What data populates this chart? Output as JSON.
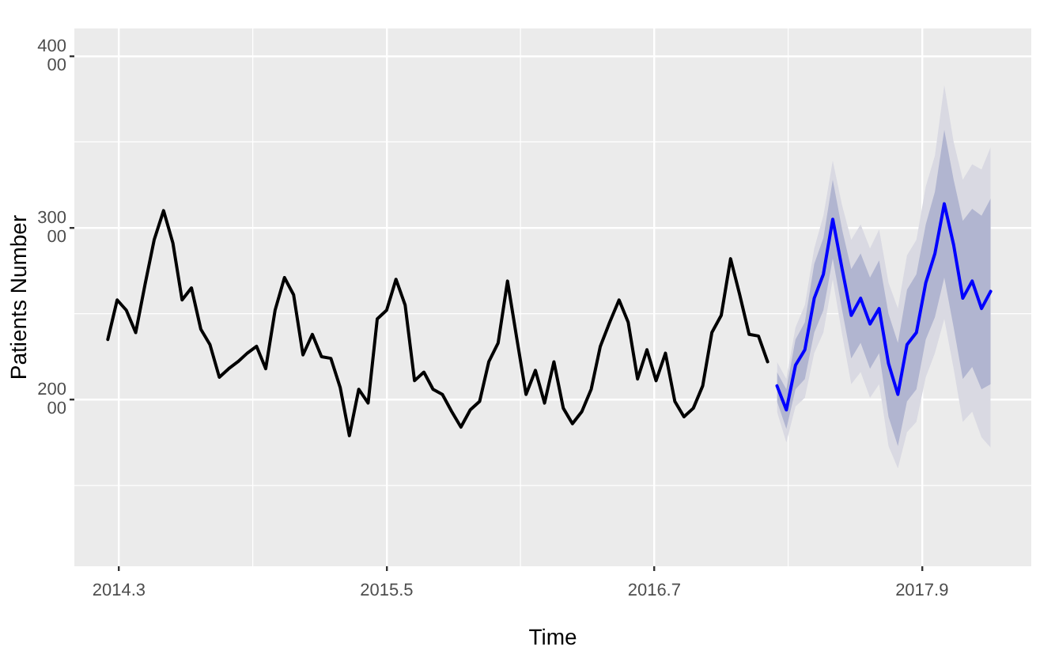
{
  "chart_data": {
    "type": "line",
    "xlabel": "Time",
    "ylabel": "Patients Number",
    "xlim": [
      2014.1,
      2018.39
    ],
    "xticks": [
      2014.3,
      2015.5,
      2016.7,
      2017.9
    ],
    "ylim": [
      10300,
      41600
    ],
    "yticks": [
      20000,
      30000,
      40000
    ],
    "grid": true,
    "legend": false,
    "marker": "none",
    "line_style": "solid",
    "series": [
      {
        "color": "#000000",
        "x": [
          2014.25,
          2014.292,
          2014.333,
          2014.375,
          2014.417,
          2014.458,
          2014.5,
          2014.542,
          2014.583,
          2014.625,
          2014.667,
          2014.708,
          2014.75,
          2014.792,
          2014.833,
          2014.875,
          2014.917,
          2014.958,
          2015.0,
          2015.042,
          2015.083,
          2015.125,
          2015.167,
          2015.208,
          2015.25,
          2015.292,
          2015.333,
          2015.375,
          2015.417,
          2015.458,
          2015.5,
          2015.542,
          2015.583,
          2015.625,
          2015.667,
          2015.708,
          2015.75,
          2015.792,
          2015.833,
          2015.875,
          2015.917,
          2015.958,
          2016.0,
          2016.042,
          2016.083,
          2016.125,
          2016.167,
          2016.208,
          2016.25,
          2016.292,
          2016.333,
          2016.375,
          2016.417,
          2016.458,
          2016.5,
          2016.542,
          2016.583,
          2016.625,
          2016.667,
          2016.708,
          2016.75,
          2016.792,
          2016.833,
          2016.875,
          2016.917,
          2016.958,
          2017.0,
          2017.042,
          2017.083,
          2017.125,
          2017.167,
          2017.208
        ],
        "values": [
          23500,
          25800,
          25200,
          23900,
          26700,
          29300,
          31000,
          29100,
          25800,
          26500,
          24100,
          23200,
          21300,
          21800,
          22200,
          22700,
          23100,
          21800,
          25200,
          27100,
          26100,
          22600,
          23800,
          22500,
          22400,
          20700,
          17900,
          20600,
          19800,
          24700,
          25200,
          27000,
          25500,
          21100,
          21600,
          20600,
          20300,
          19300,
          18400,
          19400,
          19900,
          22200,
          23300,
          26900,
          23600,
          20300,
          21700,
          19800,
          22200,
          19500,
          18600,
          19300,
          20600,
          23100,
          24500,
          25800,
          24500,
          21200,
          22900,
          21100,
          22700,
          19900,
          19000,
          19500,
          20800,
          23900,
          24900,
          28200,
          26100,
          23800,
          23700,
          22200
        ]
      },
      {
        "color": "#0000ff",
        "x": [
          2017.25,
          2017.292,
          2017.333,
          2017.375,
          2017.417,
          2017.458,
          2017.5,
          2017.542,
          2017.583,
          2017.625,
          2017.667,
          2017.708,
          2017.75,
          2017.792,
          2017.833,
          2017.875,
          2017.917,
          2017.958,
          2018.0,
          2018.042,
          2018.083,
          2018.125,
          2018.167,
          2018.208
        ],
        "values": [
          20800,
          19400,
          22000,
          22900,
          25900,
          27300,
          30500,
          27600,
          24900,
          25900,
          24400,
          25300,
          22100,
          20300,
          23200,
          23900,
          26800,
          28500,
          31400,
          29000,
          25900,
          26900,
          25300,
          26300
        ],
        "lower": [
          19900,
          18300,
          20600,
          21200,
          23900,
          25200,
          28200,
          25200,
          22400,
          23300,
          21800,
          22700,
          19000,
          17300,
          19900,
          20600,
          23500,
          24800,
          27100,
          24200,
          21200,
          21900,
          20600,
          20900
        ],
        "upper": [
          21600,
          20600,
          23500,
          24500,
          27900,
          29400,
          32800,
          29900,
          27600,
          28500,
          27100,
          28100,
          25000,
          23300,
          26400,
          27300,
          30200,
          32100,
          35700,
          32800,
          30400,
          31100,
          30700,
          31700
        ]
      },
      {
        "type": "area",
        "color": "#d9d9e2",
        "x": [
          2017.25,
          2017.292,
          2017.333,
          2017.375,
          2017.417,
          2017.458,
          2017.5,
          2017.542,
          2017.583,
          2017.625,
          2017.667,
          2017.708,
          2017.75,
          2017.792,
          2017.833,
          2017.875,
          2017.917,
          2017.958,
          2018.0,
          2018.042,
          2018.083,
          2018.125,
          2018.167,
          2018.208
        ],
        "values": [
          null,
          null,
          null,
          null,
          null,
          null,
          null,
          null,
          null,
          null,
          null,
          null,
          null,
          null,
          null,
          null,
          null,
          null,
          null,
          null,
          null,
          null,
          null,
          null
        ],
        "lower": [
          19300,
          17500,
          19600,
          20100,
          22700,
          23900,
          27000,
          23800,
          20900,
          21600,
          20100,
          20900,
          17300,
          16000,
          18100,
          18700,
          21300,
          22700,
          24700,
          21800,
          18700,
          19300,
          17800,
          17200
        ],
        "upper": [
          22200,
          21200,
          24200,
          25500,
          28800,
          30700,
          33900,
          31300,
          29300,
          30200,
          28800,
          29900,
          26800,
          25300,
          28400,
          29300,
          32400,
          34200,
          38300,
          35000,
          32800,
          33700,
          33400,
          34700
        ]
      }
    ]
  }
}
